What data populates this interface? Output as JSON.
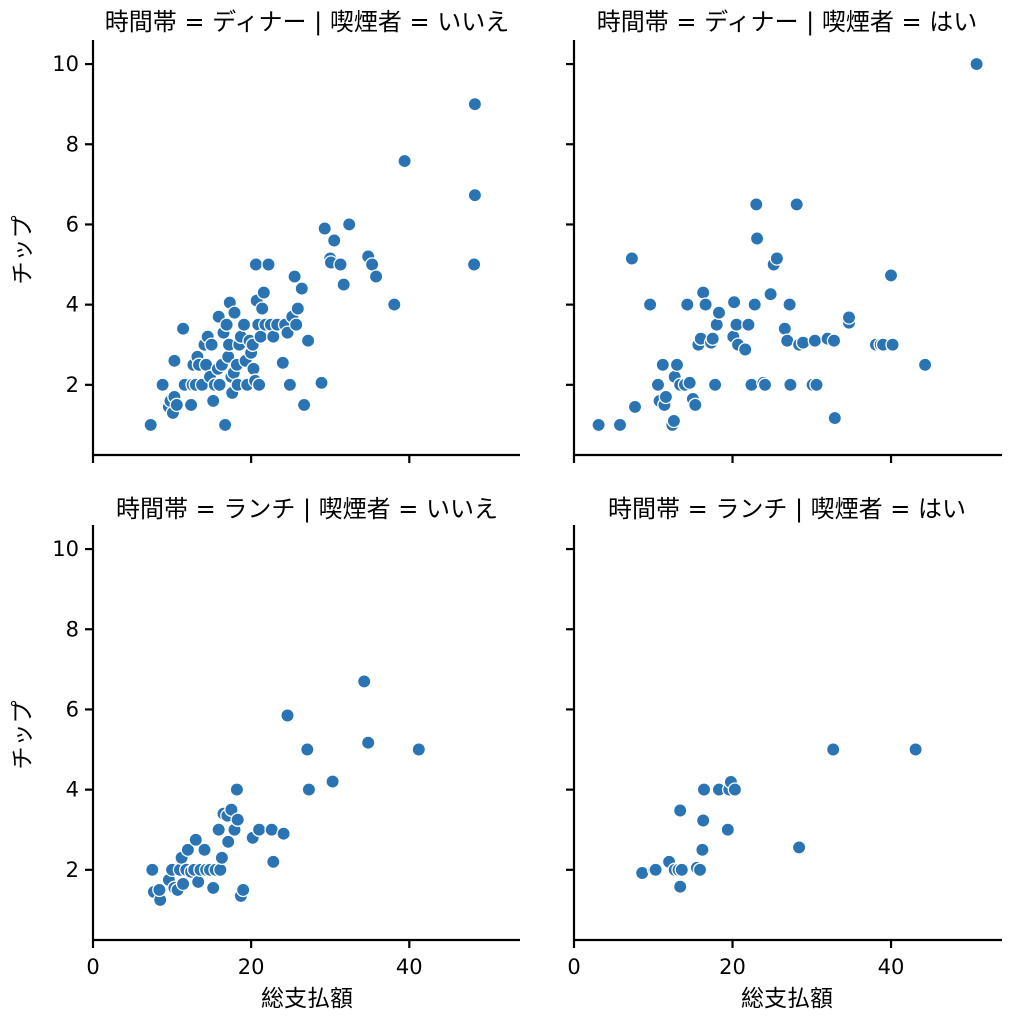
{
  "colors": {
    "marker": "#2a74b3",
    "axis": "#000000",
    "background": "#ffffff"
  },
  "chart_data": [
    {
      "type": "scatter",
      "title": "時間帯 = ディナー | 喫煙者 = いいえ",
      "xlabel": "",
      "ylabel": "チップ",
      "xlim": [
        0,
        54
      ],
      "ylim": [
        0.25,
        10.6
      ],
      "xticks": [],
      "yticks": [
        "2",
        "4",
        "6",
        "8",
        "10"
      ],
      "grid": false,
      "points": [
        {
          "x": 7.3,
          "y": 1.0
        },
        {
          "x": 8.8,
          "y": 2.0
        },
        {
          "x": 9.6,
          "y": 1.45
        },
        {
          "x": 9.8,
          "y": 1.6
        },
        {
          "x": 10.1,
          "y": 1.3
        },
        {
          "x": 10.3,
          "y": 1.7
        },
        {
          "x": 10.3,
          "y": 2.6
        },
        {
          "x": 10.6,
          "y": 1.5
        },
        {
          "x": 11.4,
          "y": 3.4
        },
        {
          "x": 11.6,
          "y": 2.0
        },
        {
          "x": 12.4,
          "y": 1.5
        },
        {
          "x": 12.6,
          "y": 2.0
        },
        {
          "x": 12.7,
          "y": 2.5
        },
        {
          "x": 13.0,
          "y": 2.0
        },
        {
          "x": 13.2,
          "y": 2.7
        },
        {
          "x": 13.4,
          "y": 2.5
        },
        {
          "x": 13.8,
          "y": 2.0
        },
        {
          "x": 14.1,
          "y": 3.0
        },
        {
          "x": 14.3,
          "y": 2.5
        },
        {
          "x": 14.5,
          "y": 3.2
        },
        {
          "x": 14.8,
          "y": 2.2
        },
        {
          "x": 15.0,
          "y": 3.0
        },
        {
          "x": 15.2,
          "y": 1.6
        },
        {
          "x": 15.4,
          "y": 2.0
        },
        {
          "x": 15.8,
          "y": 2.4
        },
        {
          "x": 15.9,
          "y": 3.7
        },
        {
          "x": 16.0,
          "y": 2.0
        },
        {
          "x": 16.3,
          "y": 2.5
        },
        {
          "x": 16.5,
          "y": 3.3
        },
        {
          "x": 16.7,
          "y": 1.0
        },
        {
          "x": 16.9,
          "y": 3.5
        },
        {
          "x": 17.1,
          "y": 2.7
        },
        {
          "x": 17.2,
          "y": 3.0
        },
        {
          "x": 17.3,
          "y": 4.05
        },
        {
          "x": 17.5,
          "y": 2.2
        },
        {
          "x": 17.6,
          "y": 1.8
        },
        {
          "x": 17.8,
          "y": 2.3
        },
        {
          "x": 17.9,
          "y": 3.8
        },
        {
          "x": 18.2,
          "y": 2.5
        },
        {
          "x": 18.3,
          "y": 2.0
        },
        {
          "x": 18.5,
          "y": 3.0
        },
        {
          "x": 18.7,
          "y": 3.2
        },
        {
          "x": 19.1,
          "y": 3.5
        },
        {
          "x": 19.3,
          "y": 2.6
        },
        {
          "x": 19.5,
          "y": 2.0
        },
        {
          "x": 19.8,
          "y": 3.1
        },
        {
          "x": 20.0,
          "y": 2.8
        },
        {
          "x": 20.2,
          "y": 3.0
        },
        {
          "x": 20.3,
          "y": 2.4
        },
        {
          "x": 20.5,
          "y": 2.1
        },
        {
          "x": 20.6,
          "y": 5.0
        },
        {
          "x": 20.7,
          "y": 4.1
        },
        {
          "x": 20.9,
          "y": 3.5
        },
        {
          "x": 21.0,
          "y": 2.0
        },
        {
          "x": 21.2,
          "y": 3.2
        },
        {
          "x": 21.4,
          "y": 3.9
        },
        {
          "x": 21.6,
          "y": 4.3
        },
        {
          "x": 21.8,
          "y": 3.5
        },
        {
          "x": 22.2,
          "y": 5.0
        },
        {
          "x": 22.5,
          "y": 3.5
        },
        {
          "x": 22.8,
          "y": 3.2
        },
        {
          "x": 23.3,
          "y": 3.5
        },
        {
          "x": 24.0,
          "y": 2.55
        },
        {
          "x": 24.3,
          "y": 3.5
        },
        {
          "x": 24.6,
          "y": 3.3
        },
        {
          "x": 24.9,
          "y": 2.0
        },
        {
          "x": 25.2,
          "y": 3.7
        },
        {
          "x": 25.5,
          "y": 4.7
        },
        {
          "x": 25.7,
          "y": 3.5
        },
        {
          "x": 25.9,
          "y": 3.9
        },
        {
          "x": 26.4,
          "y": 4.4
        },
        {
          "x": 26.7,
          "y": 1.5
        },
        {
          "x": 27.2,
          "y": 3.1
        },
        {
          "x": 28.9,
          "y": 2.05
        },
        {
          "x": 29.3,
          "y": 5.9
        },
        {
          "x": 30.0,
          "y": 5.15
        },
        {
          "x": 30.1,
          "y": 5.05
        },
        {
          "x": 30.5,
          "y": 5.6
        },
        {
          "x": 31.3,
          "y": 5.0
        },
        {
          "x": 31.7,
          "y": 4.5
        },
        {
          "x": 32.4,
          "y": 6.0
        },
        {
          "x": 34.8,
          "y": 5.2
        },
        {
          "x": 35.3,
          "y": 5.0
        },
        {
          "x": 35.8,
          "y": 4.7
        },
        {
          "x": 38.1,
          "y": 4.0
        },
        {
          "x": 39.4,
          "y": 7.58
        },
        {
          "x": 48.3,
          "y": 9.0
        },
        {
          "x": 48.3,
          "y": 6.73
        },
        {
          "x": 48.2,
          "y": 5.0
        }
      ]
    },
    {
      "type": "scatter",
      "title": "時間帯 = ディナー | 喫煙者 = はい",
      "xlabel": "",
      "ylabel": "",
      "xlim": [
        0,
        54
      ],
      "ylim": [
        0.25,
        10.6
      ],
      "xticks": [],
      "yticks": [],
      "grid": false,
      "points": [
        {
          "x": 3.1,
          "y": 1.0
        },
        {
          "x": 5.8,
          "y": 1.0
        },
        {
          "x": 7.3,
          "y": 5.15
        },
        {
          "x": 7.7,
          "y": 1.45
        },
        {
          "x": 9.6,
          "y": 4.0
        },
        {
          "x": 10.6,
          "y": 2.0
        },
        {
          "x": 10.8,
          "y": 1.6
        },
        {
          "x": 11.2,
          "y": 2.5
        },
        {
          "x": 11.4,
          "y": 1.5
        },
        {
          "x": 11.6,
          "y": 1.7
        },
        {
          "x": 12.4,
          "y": 1.0
        },
        {
          "x": 12.6,
          "y": 1.1
        },
        {
          "x": 12.7,
          "y": 2.2
        },
        {
          "x": 13.0,
          "y": 2.5
        },
        {
          "x": 13.4,
          "y": 2.0
        },
        {
          "x": 14.0,
          "y": 2.0
        },
        {
          "x": 14.3,
          "y": 4.0
        },
        {
          "x": 14.6,
          "y": 2.05
        },
        {
          "x": 15.0,
          "y": 1.65
        },
        {
          "x": 15.3,
          "y": 1.5
        },
        {
          "x": 15.7,
          "y": 3.0
        },
        {
          "x": 16.0,
          "y": 3.15
        },
        {
          "x": 16.3,
          "y": 4.3
        },
        {
          "x": 16.6,
          "y": 4.0
        },
        {
          "x": 17.3,
          "y": 3.05
        },
        {
          "x": 17.5,
          "y": 3.15
        },
        {
          "x": 17.8,
          "y": 2.0
        },
        {
          "x": 18.0,
          "y": 3.5
        },
        {
          "x": 18.3,
          "y": 3.8
        },
        {
          "x": 20.1,
          "y": 3.2
        },
        {
          "x": 20.2,
          "y": 4.06
        },
        {
          "x": 20.5,
          "y": 3.5
        },
        {
          "x": 20.7,
          "y": 3.0
        },
        {
          "x": 21.6,
          "y": 2.88
        },
        {
          "x": 22.0,
          "y": 3.5
        },
        {
          "x": 22.4,
          "y": 2.0
        },
        {
          "x": 22.8,
          "y": 4.0
        },
        {
          "x": 23.0,
          "y": 6.5
        },
        {
          "x": 23.1,
          "y": 5.65
        },
        {
          "x": 23.9,
          "y": 2.05
        },
        {
          "x": 24.1,
          "y": 2.0
        },
        {
          "x": 24.8,
          "y": 4.26
        },
        {
          "x": 25.2,
          "y": 5.0
        },
        {
          "x": 25.6,
          "y": 5.15
        },
        {
          "x": 26.6,
          "y": 3.4
        },
        {
          "x": 26.9,
          "y": 3.1
        },
        {
          "x": 27.2,
          "y": 4.0
        },
        {
          "x": 27.3,
          "y": 2.0
        },
        {
          "x": 28.1,
          "y": 6.5
        },
        {
          "x": 28.4,
          "y": 3.0
        },
        {
          "x": 28.9,
          "y": 3.05
        },
        {
          "x": 30.1,
          "y": 2.0
        },
        {
          "x": 30.4,
          "y": 3.1
        },
        {
          "x": 30.6,
          "y": 2.0
        },
        {
          "x": 32.0,
          "y": 3.15
        },
        {
          "x": 32.8,
          "y": 3.1
        },
        {
          "x": 32.9,
          "y": 1.17
        },
        {
          "x": 34.7,
          "y": 3.55
        },
        {
          "x": 34.7,
          "y": 3.68
        },
        {
          "x": 38.1,
          "y": 3.0
        },
        {
          "x": 38.7,
          "y": 3.0
        },
        {
          "x": 39.0,
          "y": 3.0
        },
        {
          "x": 40.2,
          "y": 3.0
        },
        {
          "x": 40.0,
          "y": 4.73
        },
        {
          "x": 44.3,
          "y": 2.5
        },
        {
          "x": 50.8,
          "y": 10.0
        }
      ]
    },
    {
      "type": "scatter",
      "title": "時間帯 = ランチ | 喫煙者 = いいえ",
      "xlabel": "総支払額",
      "ylabel": "チップ",
      "xlim": [
        0,
        54
      ],
      "ylim": [
        0.25,
        10.6
      ],
      "xticks": [
        "0",
        "20",
        "40"
      ],
      "yticks": [
        "2",
        "4",
        "6",
        "8",
        "10"
      ],
      "grid": false,
      "points": [
        {
          "x": 7.5,
          "y": 2.0
        },
        {
          "x": 7.7,
          "y": 1.45
        },
        {
          "x": 8.5,
          "y": 1.25
        },
        {
          "x": 8.4,
          "y": 1.5
        },
        {
          "x": 9.6,
          "y": 1.75
        },
        {
          "x": 10.0,
          "y": 2.0
        },
        {
          "x": 10.3,
          "y": 1.55
        },
        {
          "x": 10.7,
          "y": 1.5
        },
        {
          "x": 11.0,
          "y": 2.0
        },
        {
          "x": 11.2,
          "y": 2.3
        },
        {
          "x": 11.4,
          "y": 1.65
        },
        {
          "x": 11.8,
          "y": 2.0
        },
        {
          "x": 12.0,
          "y": 2.5
        },
        {
          "x": 12.4,
          "y": 1.95
        },
        {
          "x": 12.8,
          "y": 2.0
        },
        {
          "x": 13.0,
          "y": 2.75
        },
        {
          "x": 13.3,
          "y": 1.7
        },
        {
          "x": 13.6,
          "y": 2.0
        },
        {
          "x": 14.1,
          "y": 2.5
        },
        {
          "x": 14.3,
          "y": 2.0
        },
        {
          "x": 14.8,
          "y": 2.0
        },
        {
          "x": 15.2,
          "y": 1.55
        },
        {
          "x": 15.5,
          "y": 2.0
        },
        {
          "x": 15.9,
          "y": 3.0
        },
        {
          "x": 16.1,
          "y": 2.0
        },
        {
          "x": 16.3,
          "y": 2.3
        },
        {
          "x": 16.5,
          "y": 3.4
        },
        {
          "x": 17.0,
          "y": 3.35
        },
        {
          "x": 17.1,
          "y": 2.7
        },
        {
          "x": 17.5,
          "y": 3.5
        },
        {
          "x": 17.9,
          "y": 3.0
        },
        {
          "x": 18.2,
          "y": 4.0
        },
        {
          "x": 18.3,
          "y": 3.25
        },
        {
          "x": 18.7,
          "y": 1.35
        },
        {
          "x": 19.0,
          "y": 1.5
        },
        {
          "x": 20.2,
          "y": 2.8
        },
        {
          "x": 21.0,
          "y": 3.0
        },
        {
          "x": 22.6,
          "y": 3.0
        },
        {
          "x": 22.8,
          "y": 2.2
        },
        {
          "x": 24.1,
          "y": 2.9
        },
        {
          "x": 24.6,
          "y": 5.85
        },
        {
          "x": 27.1,
          "y": 5.0
        },
        {
          "x": 27.3,
          "y": 4.0
        },
        {
          "x": 30.3,
          "y": 4.2
        },
        {
          "x": 34.3,
          "y": 6.7
        },
        {
          "x": 34.8,
          "y": 5.17
        },
        {
          "x": 41.2,
          "y": 5.0
        }
      ]
    },
    {
      "type": "scatter",
      "title": "時間帯 = ランチ | 喫煙者 = はい",
      "xlabel": "総支払額",
      "ylabel": "",
      "xlim": [
        0,
        54
      ],
      "ylim": [
        0.25,
        10.6
      ],
      "xticks": [
        "0",
        "20",
        "40"
      ],
      "yticks": [],
      "grid": false,
      "points": [
        {
          "x": 8.6,
          "y": 1.92
        },
        {
          "x": 10.1,
          "y": 2.0
        },
        {
          "x": 10.3,
          "y": 2.0
        },
        {
          "x": 12.0,
          "y": 2.2
        },
        {
          "x": 12.7,
          "y": 2.0
        },
        {
          "x": 13.2,
          "y": 2.0
        },
        {
          "x": 13.4,
          "y": 1.58
        },
        {
          "x": 13.4,
          "y": 3.48
        },
        {
          "x": 13.6,
          "y": 2.0
        },
        {
          "x": 15.5,
          "y": 2.05
        },
        {
          "x": 15.9,
          "y": 2.0
        },
        {
          "x": 16.2,
          "y": 2.5
        },
        {
          "x": 16.3,
          "y": 3.23
        },
        {
          "x": 16.4,
          "y": 4.0
        },
        {
          "x": 18.3,
          "y": 4.0
        },
        {
          "x": 19.4,
          "y": 3.0
        },
        {
          "x": 19.6,
          "y": 4.0
        },
        {
          "x": 19.8,
          "y": 4.19
        },
        {
          "x": 20.3,
          "y": 4.0
        },
        {
          "x": 28.4,
          "y": 2.56
        },
        {
          "x": 32.7,
          "y": 5.0
        },
        {
          "x": 43.1,
          "y": 5.0
        }
      ]
    }
  ]
}
